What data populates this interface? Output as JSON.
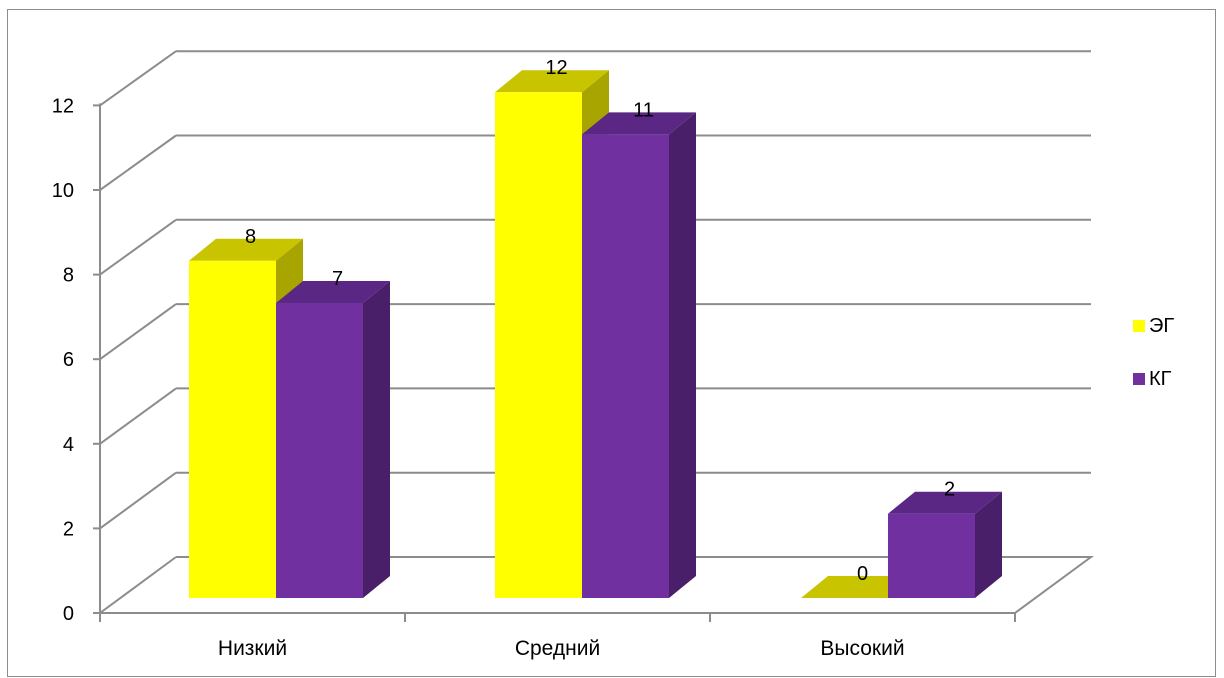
{
  "chart_data": {
    "type": "bar",
    "title": "",
    "xlabel": "",
    "ylabel": "",
    "categories": [
      "Низкий",
      "Средний",
      "Высокий"
    ],
    "series": [
      {
        "name": "ЭГ",
        "values": [
          8,
          12,
          0
        ],
        "color": "#ffff00",
        "side_color": "#a8a400",
        "top_color": "#c8c400"
      },
      {
        "name": "КГ",
        "values": [
          7,
          11,
          2
        ],
        "color": "#7030a0",
        "side_color": "#4a1f6a",
        "top_color": "#5b2785"
      }
    ],
    "ylim": [
      0,
      12
    ],
    "y_ticks": [
      "0",
      "2",
      "4",
      "6",
      "8",
      "10",
      "12"
    ],
    "data_labels": [
      [
        "8",
        "12",
        "0"
      ],
      [
        "7",
        "11",
        "2"
      ]
    ],
    "grid": true,
    "legend_position": "right",
    "three_d": true
  }
}
